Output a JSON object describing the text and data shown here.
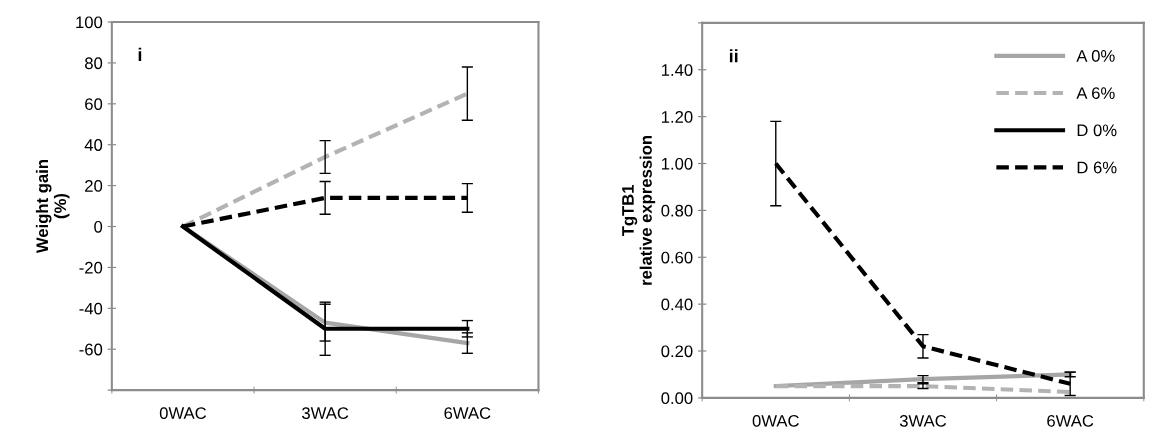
{
  "chart_data": [
    {
      "type": "line",
      "ylabel": "Weight gain\n(%)",
      "annotations": [
        "i"
      ],
      "categories": [
        "0WAC",
        "3WAC",
        "6WAC"
      ],
      "ylim": [
        -80,
        100
      ],
      "yticks": [
        {
          "value": -80,
          "label": null
        },
        -60,
        -40,
        -20,
        0,
        20,
        40,
        60,
        80,
        100
      ],
      "grid": false,
      "legend": false,
      "marker": "none",
      "series": [
        {
          "color": "#a6a6a6",
          "line_style": "solid",
          "values": [
            0,
            -47,
            -57
          ],
          "errors": [
            null,
            9,
            5
          ]
        },
        {
          "color": "#b3b3b3",
          "line_style": "dashed",
          "values": [
            0,
            34,
            65
          ],
          "errors": [
            null,
            8,
            13
          ]
        },
        {
          "color": "#000000",
          "line_style": "solid",
          "values": [
            0,
            -50,
            -50
          ],
          "errors": [
            null,
            13,
            4
          ]
        },
        {
          "color": "#000000",
          "line_style": "dashed",
          "values": [
            0,
            14,
            14
          ],
          "errors": [
            null,
            8,
            7
          ]
        }
      ]
    },
    {
      "type": "line",
      "ylabel": "TgTB1\nrelative expression",
      "annotations": [
        "ii"
      ],
      "categories": [
        "0WAC",
        "3WAC",
        "6WAC"
      ],
      "ylim": [
        0,
        1.6
      ],
      "yticks": [
        {
          "value": 0,
          "label": "0.00"
        },
        {
          "value": 0.2,
          "label": "0.20"
        },
        {
          "value": 0.4,
          "label": "0.40"
        },
        {
          "value": 0.6,
          "label": "0.60"
        },
        {
          "value": 0.8,
          "label": "0.80"
        },
        {
          "value": 1.0,
          "label": "1.00"
        },
        {
          "value": 1.2,
          "label": "1.20"
        },
        {
          "value": 1.4,
          "label": "1.40"
        },
        {
          "value": 1.6,
          "label": null
        }
      ],
      "grid": false,
      "legend": "top right",
      "marker": "none",
      "series": [
        {
          "name": "A 0%",
          "color": "#a6a6a6",
          "line_style": "solid",
          "values": [
            0.05,
            0.08,
            0.1
          ],
          "errors": [
            null,
            0.015,
            0.01
          ]
        },
        {
          "name": "A 6%",
          "color": "#b3b3b3",
          "line_style": "dashed",
          "values": [
            0.05,
            0.05,
            0.025
          ],
          "errors": [
            null,
            0.01,
            null
          ]
        },
        {
          "name": "D 0%",
          "color": "#000000",
          "line_style": "solid",
          "values": [
            null,
            null,
            null
          ]
        },
        {
          "name": "D 6%",
          "color": "#000000",
          "line_style": "dashed",
          "values": [
            1.0,
            0.22,
            0.06
          ],
          "errors": [
            0.18,
            0.05,
            0.05
          ]
        }
      ]
    }
  ]
}
